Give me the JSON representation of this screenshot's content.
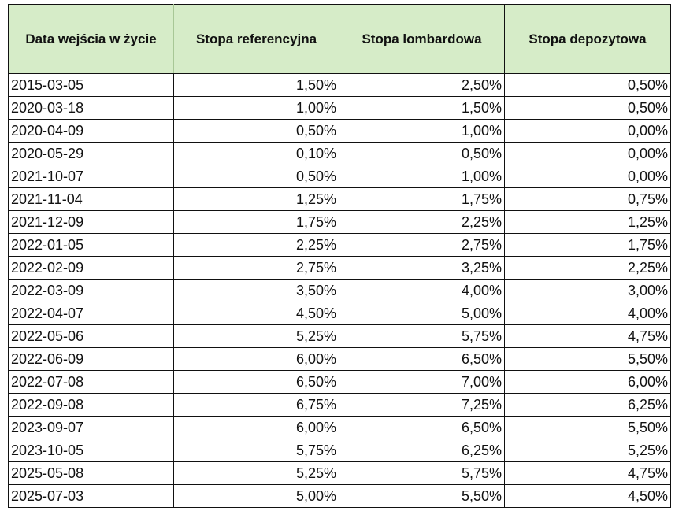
{
  "table": {
    "headers": [
      "Data wejścia w życie",
      "Stopa referencyjna",
      "Stopa lombardowa",
      "Stopa depozytowa"
    ],
    "rows": [
      [
        "2015-03-05",
        "1,50%",
        "2,50%",
        "0,50%"
      ],
      [
        "2020-03-18",
        "1,00%",
        "1,50%",
        "0,50%"
      ],
      [
        "2020-04-09",
        "0,50%",
        "1,00%",
        "0,00%"
      ],
      [
        "2020-05-29",
        "0,10%",
        "0,50%",
        "0,00%"
      ],
      [
        "2021-10-07",
        "0,50%",
        "1,00%",
        "0,00%"
      ],
      [
        "2021-11-04",
        "1,25%",
        "1,75%",
        "0,75%"
      ],
      [
        "2021-12-09",
        "1,75%",
        "2,25%",
        "1,25%"
      ],
      [
        "2022-01-05",
        "2,25%",
        "2,75%",
        "1,75%"
      ],
      [
        "2022-02-09",
        "2,75%",
        "3,25%",
        "2,25%"
      ],
      [
        "2022-03-09",
        "3,50%",
        "4,00%",
        "3,00%"
      ],
      [
        "2022-04-07",
        "4,50%",
        "5,00%",
        "4,00%"
      ],
      [
        "2022-05-06",
        "5,25%",
        "5,75%",
        "4,75%"
      ],
      [
        "2022-06-09",
        "6,00%",
        "6,50%",
        "5,50%"
      ],
      [
        "2022-07-08",
        "6,50%",
        "7,00%",
        "6,00%"
      ],
      [
        "2022-09-08",
        "6,75%",
        "7,25%",
        "6,25%"
      ],
      [
        "2023-09-07",
        "6,00%",
        "6,50%",
        "5,50%"
      ],
      [
        "2023-10-05",
        "5,75%",
        "6,25%",
        "5,25%"
      ],
      [
        "2025-05-08",
        "5,25%",
        "5,75%",
        "4,75%"
      ],
      [
        "2025-07-03",
        "5,00%",
        "5,50%",
        "4,50%"
      ]
    ]
  },
  "colors": {
    "header_background": "#d6ecc8",
    "border": "#111111"
  }
}
